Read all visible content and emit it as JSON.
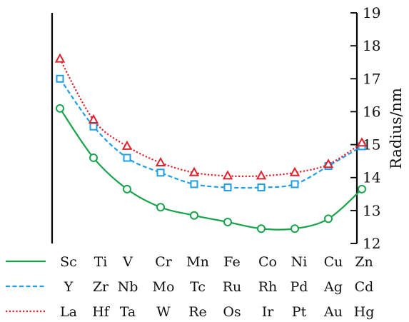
{
  "chart_data": {
    "type": "line",
    "ylabel": "Radius/nm",
    "ylim": [
      12,
      19
    ],
    "yticks": [
      12,
      13,
      14,
      15,
      16,
      17,
      18,
      19
    ],
    "ytick_labels": [
      "12",
      "13",
      "14",
      "15",
      "16",
      "17",
      "18",
      "19"
    ],
    "y_axis_side": "right",
    "positions": [
      1,
      2,
      3,
      4,
      5,
      6,
      7,
      8,
      9,
      10
    ],
    "category_rows": [
      [
        "Sc",
        "Ti",
        "V",
        "Cr",
        "Mn",
        "Fe",
        "Co",
        "Ni",
        "Cu",
        "Zn"
      ],
      [
        "Y",
        "Zr",
        "Nb",
        "Mo",
        "Tc",
        "Ru",
        "Rh",
        "Pd",
        "Ag",
        "Cd"
      ],
      [
        "La",
        "Hf",
        "Ta",
        "W",
        "Re",
        "Os",
        "Ir",
        "Pt",
        "Au",
        "Hg"
      ]
    ],
    "series": [
      {
        "values": [
          16.1,
          14.6,
          13.65,
          13.1,
          12.85,
          12.65,
          12.45,
          12.45,
          12.75,
          13.65
        ],
        "color": "#17a34a",
        "line_style": "solid",
        "marker": "circle"
      },
      {
        "values": [
          17.0,
          15.55,
          14.6,
          14.15,
          13.8,
          13.7,
          13.7,
          13.8,
          14.35,
          14.95
        ],
        "color": "#1e9ee8",
        "line_style": "dashed",
        "marker": "square"
      },
      {
        "values": [
          17.6,
          15.75,
          14.95,
          14.45,
          14.15,
          14.05,
          14.05,
          14.15,
          14.4,
          15.05
        ],
        "color": "#e0202b",
        "line_style": "dotted",
        "marker": "triangle"
      }
    ],
    "grid": false,
    "legend": "bottom-left"
  }
}
